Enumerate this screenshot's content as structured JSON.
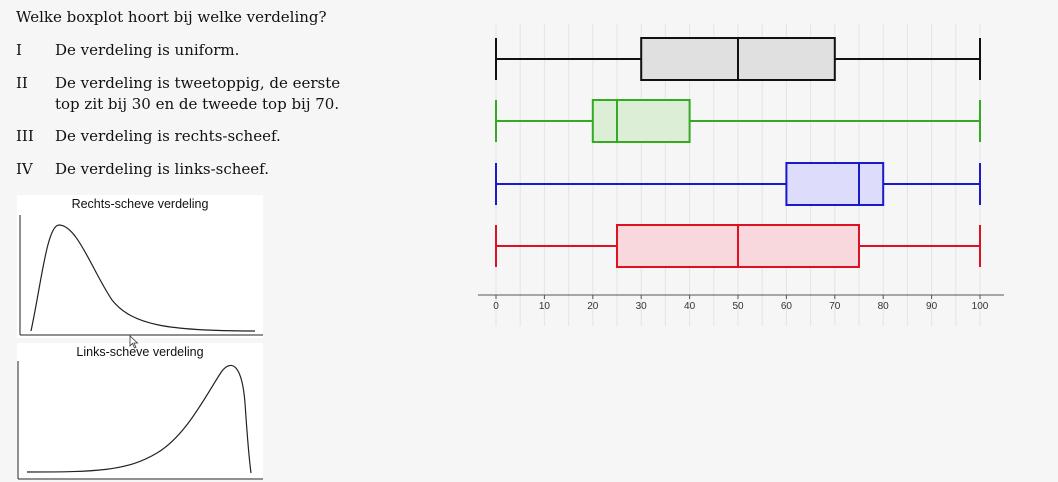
{
  "question": "Welke boxplot hoort bij welke verdeling?",
  "items": [
    {
      "num": "I",
      "text": "De verdeling is uniform."
    },
    {
      "num": "II",
      "text": "De verdeling is tweetoppig, de eerste top zit bij 30 en de tweede top bij 70."
    },
    {
      "num": "III",
      "text": "De verdeling is rechts-scheef."
    },
    {
      "num": "IV",
      "text": "De verdeling is links-scheef."
    }
  ],
  "curves": {
    "right_skewed_title": "Rechts-scheve verdeling",
    "left_skewed_title": "Links-scheve verdeling"
  },
  "chart_data": {
    "type": "boxplot",
    "xlim": [
      0,
      100
    ],
    "ticks": [
      0,
      10,
      20,
      30,
      40,
      50,
      60,
      70,
      80,
      90,
      100
    ],
    "grid": true,
    "boxes": [
      {
        "color": "#111111",
        "fill": "#e0e0e0",
        "min": 0,
        "q1": 30,
        "median": 50,
        "q3": 70,
        "max": 100
      },
      {
        "color": "#33aa22",
        "fill": "#dcefd6",
        "min": 0,
        "q1": 20,
        "median": 25,
        "q3": 40,
        "max": 100
      },
      {
        "color": "#1a1acc",
        "fill": "#ddddfb",
        "min": 0,
        "q1": 60,
        "median": 75,
        "q3": 80,
        "max": 100
      },
      {
        "color": "#dd1122",
        "fill": "#f8d8dc",
        "min": 0,
        "q1": 25,
        "median": 50,
        "q3": 75,
        "max": 100
      }
    ]
  }
}
